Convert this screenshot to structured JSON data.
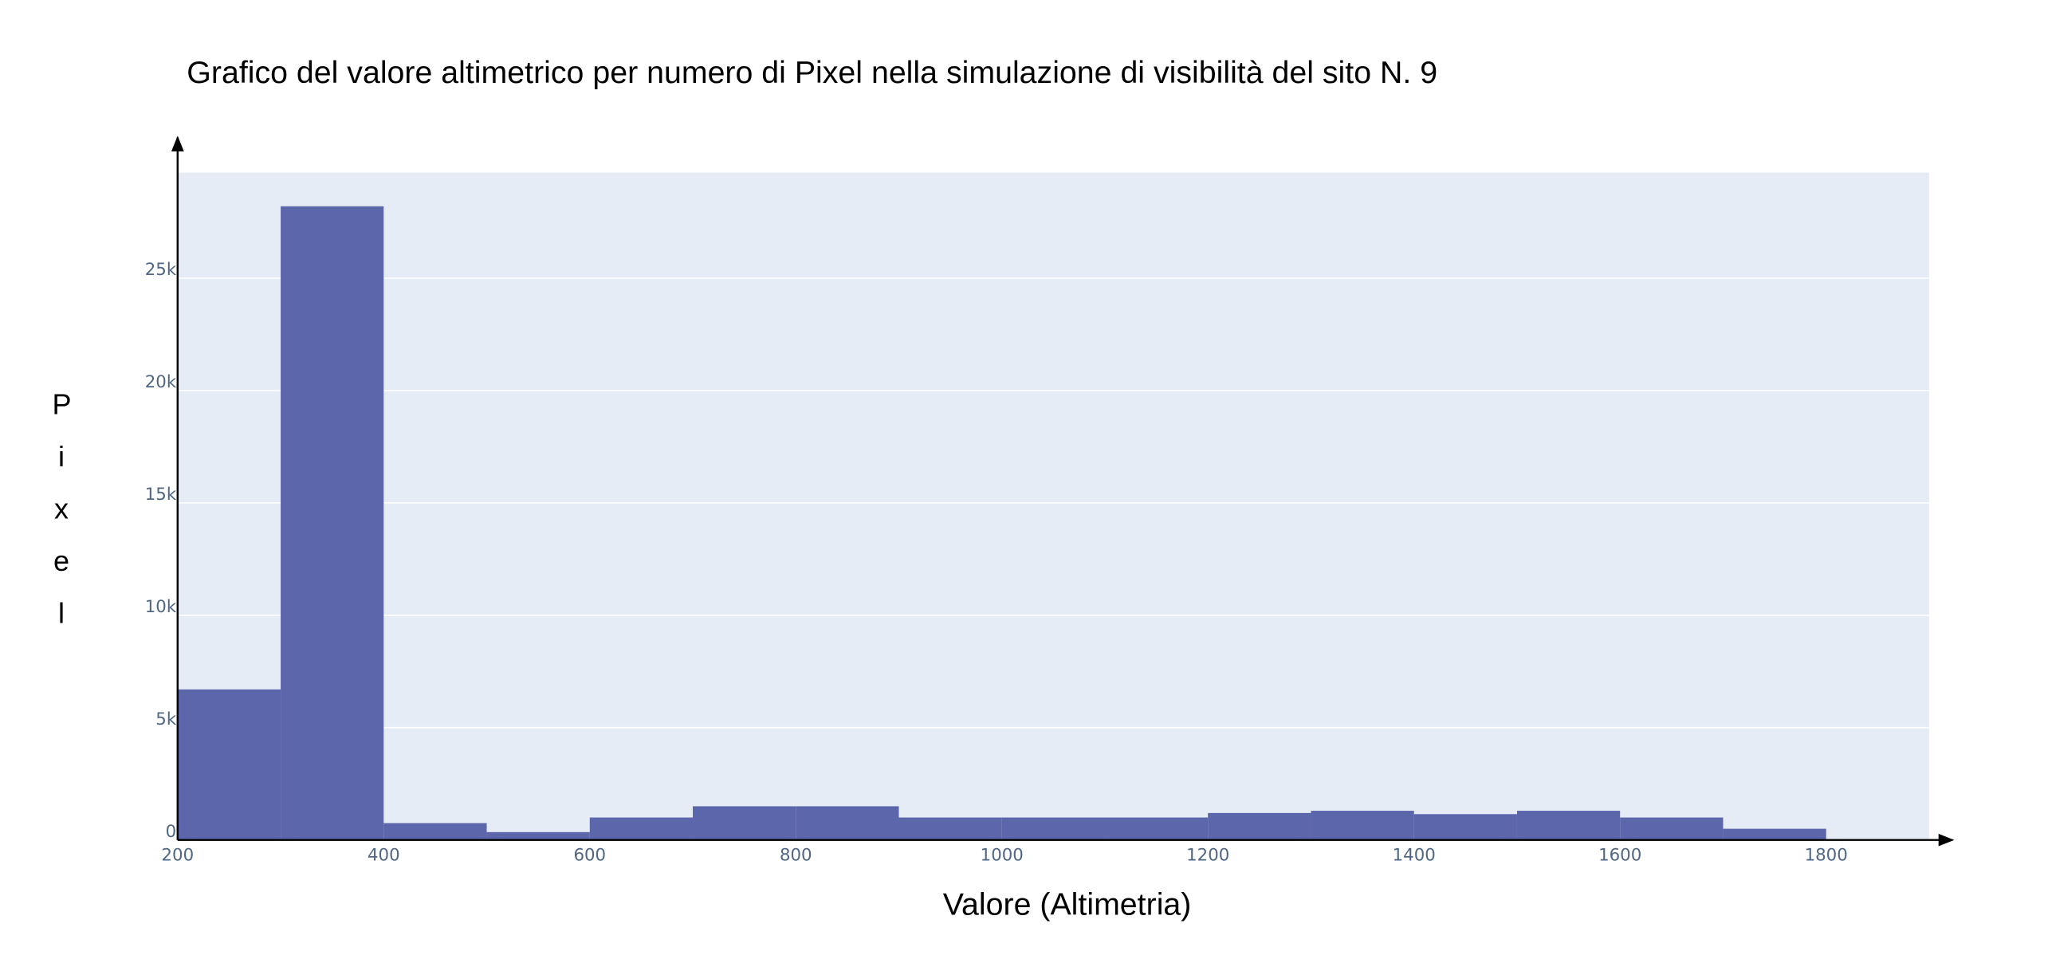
{
  "chart_data": {
    "type": "histogram",
    "title": "Grafico del valore altimetrico per numero di Pixel nella simulazione di visibilità del sito N. 9",
    "x_label": "Valore (Altimetria)",
    "y_label": "Pixel",
    "bins": [
      200,
      300,
      400,
      500,
      600,
      700,
      800,
      900,
      1000,
      1100,
      1200,
      1300,
      1400,
      1500,
      1600,
      1700,
      1800
    ],
    "counts": [
      6700,
      28200,
      750,
      350,
      1000,
      1500,
      1500,
      1000,
      1000,
      1000,
      1200,
      1300,
      1150,
      1300,
      1000,
      500
    ],
    "color": "#5c66aa",
    "xlim": [
      200,
      1900
    ],
    "ylim": [
      0,
      29700
    ],
    "xticks": [
      200,
      400,
      600,
      800,
      1000,
      1200,
      1400,
      1600,
      1800
    ],
    "yticks": [
      0,
      {
        "value": 5000,
        "label": "5k"
      },
      {
        "value": 10000,
        "label": "10k"
      },
      {
        "value": 15000,
        "label": "15k"
      },
      {
        "value": 20000,
        "label": "20k"
      },
      {
        "value": 25000,
        "label": "25k"
      }
    ],
    "grid": true
  }
}
